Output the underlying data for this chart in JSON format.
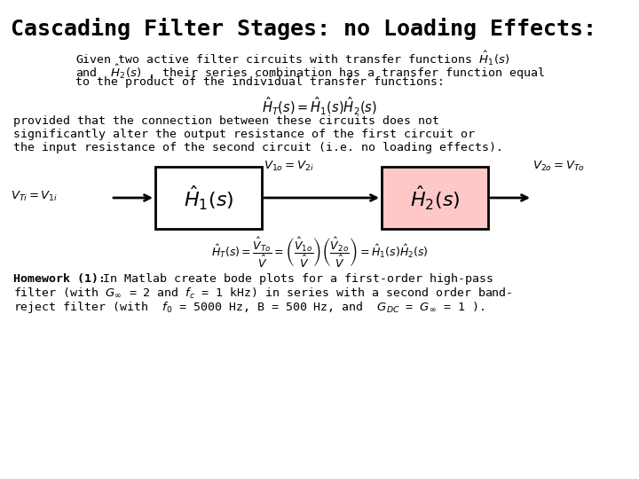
{
  "title": "Cascading Filter Stages: no Loading Effects:",
  "bg_color": "#ffffff",
  "text_color": "#000000",
  "title_fontsize": 18,
  "body_fontsize": 9.5,
  "box_fill": "#ffffff",
  "box_edge": "#000000",
  "line1a": "Given two active filter circuits with transfer functions ",
  "line1b": "$\\hat{H}_1(s)$",
  "line2a": "and  $\\hat{H}_2(s)$ , their series combination has a transfer function equal",
  "line3": "to the product of the individual transfer functions:",
  "center_formula": "$\\hat{H}_T(s) = \\hat{H}_1(s)\\hat{H}_2(s)$",
  "para2_line1": "provided that the connection between these circuits does not",
  "para2_line2": "significantly alter the output resistance of the first circuit or",
  "para2_line3": "the input resistance of the second circuit (i.e. no loading effects).",
  "v1o_label": "$V_{1o} = V_{2i}$",
  "v2o_label": "$V_{2o} = V_{To}$",
  "vti_label": "$V_{Ti} = V_{1i}$",
  "box1_label": "$\\hat{H}_1(s)$",
  "box2_label": "$\\hat{H}_2(s)$",
  "bottom_formula": "$\\hat{H}_T(s) = \\dfrac{\\hat{V}_{To}}{\\hat{V}} = \\left(\\dfrac{\\hat{V}_{1o}}{\\hat{V}}\\right)\\left(\\dfrac{\\hat{V}_{2o}}{\\hat{V}}\\right) = \\hat{H}_1(s)\\hat{H}_2(s)$",
  "hw_bold": "Homework (1):",
  "hw_rest1": " In Matlab create bode plots for a first-order high-pass",
  "hw_line2": "filter (with $G_{\\infty}$ = 2 and $f_c$ = 1 kHz) in series with a second order band-",
  "hw_line3": "reject filter (with  $f_0$ = 5000 Hz, B = 500 Hz, and  $G_{DC}$ = $G_{\\infty}$ = 1 )."
}
